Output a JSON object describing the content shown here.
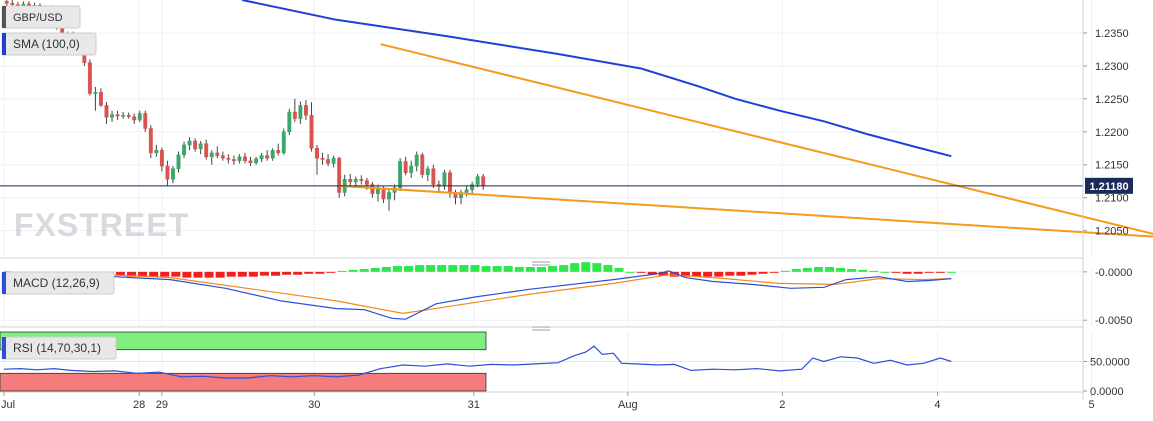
{
  "chart_data": {
    "type": "candlestick",
    "instrument": "GBP/USD",
    "watermark": "FXSTREET",
    "x_labels": [
      {
        "t": 0,
        "label": "Jul"
      },
      {
        "t": 24.4,
        "label": "28"
      },
      {
        "t": 28.5,
        "label": "29"
      },
      {
        "t": 56,
        "label": "30"
      },
      {
        "t": 84.8,
        "label": "31"
      },
      {
        "t": 112.6,
        "label": "Aug"
      },
      {
        "t": 140.5,
        "label": "2"
      },
      {
        "t": 168.5,
        "label": "4"
      },
      {
        "t": 196.3,
        "label": "5"
      }
    ],
    "price_panel": {
      "ylim": [
        1.201,
        1.24
      ],
      "ticks": [
        "1.2050",
        "1.2100",
        "1.2150",
        "1.2200",
        "1.2250",
        "1.2300",
        "1.2350"
      ],
      "current_price": "1.21180",
      "current_value": 1.2118,
      "sma_label": "SMA (100,0)",
      "sma_color": "#1f3fd6",
      "bull_color": "#3aa86a",
      "bear_color": "#d9534f",
      "trend_color": "#f59a1b",
      "candles": [
        [
          1.2398,
          1.2402,
          1.239,
          1.2395
        ],
        [
          1.2395,
          1.24,
          1.2388,
          1.2393
        ],
        [
          1.2393,
          1.2397,
          1.2386,
          1.2391
        ],
        [
          1.239,
          1.2398,
          1.2385,
          1.2394
        ],
        [
          1.2394,
          1.2398,
          1.2388,
          1.2391
        ],
        [
          1.2391,
          1.2396,
          1.2386,
          1.2392
        ],
        [
          1.2392,
          1.2395,
          1.238,
          1.2386
        ],
        [
          1.2386,
          1.2392,
          1.2382,
          1.2389
        ],
        [
          1.2389,
          1.2392,
          1.2378,
          1.238
        ],
        [
          1.238,
          1.2385,
          1.2355,
          1.236
        ],
        [
          1.236,
          1.2368,
          1.2335,
          1.234
        ],
        [
          1.234,
          1.2352,
          1.2332,
          1.2348
        ],
        [
          1.2348,
          1.2352,
          1.2328,
          1.2332
        ],
        [
          1.2332,
          1.2342,
          1.232,
          1.2338
        ],
        [
          1.2338,
          1.2342,
          1.23,
          1.2305
        ],
        [
          1.2305,
          1.231,
          1.2255,
          1.2258
        ],
        [
          1.2258,
          1.2268,
          1.2232,
          1.226
        ],
        [
          1.226,
          1.2266,
          1.2238,
          1.224
        ],
        [
          1.224,
          1.2245,
          1.2212,
          1.2222
        ],
        [
          1.2222,
          1.2232,
          1.2215,
          1.2226
        ],
        [
          1.2226,
          1.2232,
          1.2218,
          1.2224
        ],
        [
          1.2224,
          1.223,
          1.222,
          1.2225
        ],
        [
          1.2225,
          1.2229,
          1.222,
          1.2223
        ],
        [
          1.2223,
          1.2228,
          1.2212,
          1.2218
        ],
        [
          1.2218,
          1.2232,
          1.2215,
          1.2228
        ],
        [
          1.2228,
          1.2232,
          1.22,
          1.2205
        ],
        [
          1.2205,
          1.221,
          1.216,
          1.2168
        ],
        [
          1.2168,
          1.218,
          1.2162,
          1.2172
        ],
        [
          1.2172,
          1.2176,
          1.214,
          1.2148
        ],
        [
          1.2148,
          1.2156,
          1.2118,
          1.2128
        ],
        [
          1.2128,
          1.2148,
          1.2122,
          1.2144
        ],
        [
          1.2144,
          1.217,
          1.2138,
          1.2165
        ],
        [
          1.2165,
          1.2185,
          1.216,
          1.218
        ],
        [
          1.218,
          1.2192,
          1.2172,
          1.2186
        ],
        [
          1.2186,
          1.219,
          1.217,
          1.2174
        ],
        [
          1.2174,
          1.2186,
          1.2166,
          1.2182
        ],
        [
          1.2182,
          1.2188,
          1.2158,
          1.2162
        ],
        [
          1.2162,
          1.2172,
          1.215,
          1.2168
        ],
        [
          1.2168,
          1.2178,
          1.216,
          1.2164
        ],
        [
          1.2164,
          1.217,
          1.2156,
          1.216
        ],
        [
          1.216,
          1.2166,
          1.2152,
          1.2158
        ],
        [
          1.2158,
          1.2164,
          1.215,
          1.2156
        ],
        [
          1.2156,
          1.2166,
          1.2152,
          1.2162
        ],
        [
          1.2162,
          1.2168,
          1.2152,
          1.2156
        ],
        [
          1.2156,
          1.2162,
          1.2148,
          1.2153
        ],
        [
          1.2153,
          1.2162,
          1.215,
          1.2159
        ],
        [
          1.2159,
          1.2168,
          1.2154,
          1.2164
        ],
        [
          1.2164,
          1.2172,
          1.2156,
          1.216
        ],
        [
          1.216,
          1.2175,
          1.2156,
          1.2172
        ],
        [
          1.2172,
          1.2182,
          1.2164,
          1.2168
        ],
        [
          1.2168,
          1.2205,
          1.2165,
          1.22
        ],
        [
          1.22,
          1.2235,
          1.2195,
          1.223
        ],
        [
          1.223,
          1.225,
          1.2215,
          1.222
        ],
        [
          1.222,
          1.2246,
          1.2212,
          1.224
        ],
        [
          1.224,
          1.2248,
          1.2218,
          1.2225
        ],
        [
          1.2225,
          1.2245,
          1.217,
          1.2175
        ],
        [
          1.2175,
          1.218,
          1.2135,
          1.216
        ],
        [
          1.216,
          1.2168,
          1.215,
          1.2158
        ],
        [
          1.2158,
          1.2166,
          1.2148,
          1.2152
        ],
        [
          1.2152,
          1.2164,
          1.2146,
          1.216
        ],
        [
          1.216,
          1.2162,
          1.21,
          1.2108
        ],
        [
          1.2108,
          1.2135,
          1.2102,
          1.2128
        ],
        [
          1.2128,
          1.2136,
          1.2118,
          1.2124
        ],
        [
          1.2124,
          1.2132,
          1.2116,
          1.2128
        ],
        [
          1.2128,
          1.2134,
          1.212,
          1.2126
        ],
        [
          1.2126,
          1.213,
          1.2112,
          1.212
        ],
        [
          1.212,
          1.2124,
          1.21,
          1.2106
        ],
        [
          1.2106,
          1.212,
          1.2094,
          1.2114
        ],
        [
          1.2114,
          1.2118,
          1.2092,
          1.2098
        ],
        [
          1.2098,
          1.2112,
          1.208,
          1.2108
        ],
        [
          1.2108,
          1.212,
          1.2096,
          1.2115
        ],
        [
          1.2115,
          1.216,
          1.211,
          1.2155
        ],
        [
          1.2155,
          1.2162,
          1.2134,
          1.2138
        ],
        [
          1.2138,
          1.2156,
          1.213,
          1.2148
        ],
        [
          1.2148,
          1.217,
          1.214,
          1.2165
        ],
        [
          1.2165,
          1.2168,
          1.213,
          1.2135
        ],
        [
          1.2135,
          1.2148,
          1.2125,
          1.2144
        ],
        [
          1.2144,
          1.215,
          1.2115,
          1.212
        ],
        [
          1.212,
          1.2126,
          1.211,
          1.2118
        ],
        [
          1.2118,
          1.2142,
          1.2112,
          1.2138
        ],
        [
          1.2138,
          1.2142,
          1.21,
          1.2108
        ],
        [
          1.2108,
          1.2112,
          1.209,
          1.21
        ],
        [
          1.21,
          1.2112,
          1.209,
          1.2108
        ],
        [
          1.2108,
          1.2118,
          1.2102,
          1.2112
        ],
        [
          1.2112,
          1.2124,
          1.2106,
          1.212
        ],
        [
          1.212,
          1.2136,
          1.2116,
          1.2132
        ],
        [
          1.2132,
          1.2136,
          1.2112,
          1.2118
        ]
      ],
      "sma": [
        {
          "t": 43,
          "v": 1.24
        },
        {
          "t": 60,
          "v": 1.237
        },
        {
          "t": 80,
          "v": 1.2345
        },
        {
          "t": 100,
          "v": 1.2318
        },
        {
          "t": 115,
          "v": 1.2296
        },
        {
          "t": 125,
          "v": 1.227
        },
        {
          "t": 132,
          "v": 1.225
        },
        {
          "t": 140,
          "v": 1.2232
        },
        {
          "t": 148,
          "v": 1.2216
        },
        {
          "t": 156,
          "v": 1.2196
        },
        {
          "t": 165,
          "v": 1.2176
        },
        {
          "t": 171,
          "v": 1.2163
        }
      ],
      "trend_upper": [
        {
          "t": 68,
          "v": 1.2333
        },
        {
          "t": 222,
          "v": 1.2015
        }
      ],
      "trend_lower": [
        {
          "t": 60.5,
          "v": 1.2118
        },
        {
          "t": 238,
          "v": 1.2025
        }
      ]
    },
    "macd_panel": {
      "label": "MACD (12,26,9)",
      "ylim": [
        -0.0056,
        0.0005
      ],
      "ticks": [
        "-0.0000",
        "-0.0050"
      ],
      "macd_color": "#2a50d8",
      "signal_color": "#f28a1b",
      "hist_pos_color": "#2ee84a",
      "hist_neg_color": "#f21f1f",
      "macd": [
        {
          "t": 0,
          "v": -0.0
        },
        {
          "t": 10,
          "v": -0.0002
        },
        {
          "t": 20,
          "v": -0.0005
        },
        {
          "t": 30,
          "v": -0.0008
        },
        {
          "t": 40,
          "v": -0.0017
        },
        {
          "t": 50,
          "v": -0.003
        },
        {
          "t": 60,
          "v": -0.0038
        },
        {
          "t": 65,
          "v": -0.0039
        },
        {
          "t": 70,
          "v": -0.0048
        },
        {
          "t": 72.5,
          "v": -0.0049
        },
        {
          "t": 78,
          "v": -0.0033
        },
        {
          "t": 85,
          "v": -0.0026
        },
        {
          "t": 95,
          "v": -0.0018
        },
        {
          "t": 110,
          "v": -0.0008
        },
        {
          "t": 118,
          "v": -0.0002
        },
        {
          "t": 120,
          "v": 0.0001
        },
        {
          "t": 123,
          "v": -0.0006
        },
        {
          "t": 128,
          "v": -0.001
        },
        {
          "t": 135,
          "v": -0.0013
        },
        {
          "t": 142,
          "v": -0.0017
        },
        {
          "t": 148,
          "v": -0.0016
        },
        {
          "t": 152,
          "v": -0.0008
        },
        {
          "t": 158,
          "v": -0.0005
        },
        {
          "t": 163,
          "v": -0.001
        },
        {
          "t": 167,
          "v": -0.0009
        },
        {
          "t": 171,
          "v": -0.0007
        }
      ],
      "signal": [
        {
          "t": 0,
          "v": -0.0
        },
        {
          "t": 15,
          "v": -0.0002
        },
        {
          "t": 30,
          "v": -0.0006
        },
        {
          "t": 45,
          "v": -0.0018
        },
        {
          "t": 60,
          "v": -0.003
        },
        {
          "t": 72,
          "v": -0.0043
        },
        {
          "t": 80,
          "v": -0.0036
        },
        {
          "t": 95,
          "v": -0.0023
        },
        {
          "t": 110,
          "v": -0.0012
        },
        {
          "t": 120,
          "v": -0.0003
        },
        {
          "t": 128,
          "v": -0.0006
        },
        {
          "t": 140,
          "v": -0.0012
        },
        {
          "t": 150,
          "v": -0.0013
        },
        {
          "t": 158,
          "v": -0.0007
        },
        {
          "t": 166,
          "v": -0.0008
        },
        {
          "t": 171,
          "v": -0.0007
        }
      ],
      "histogram": [
        0.0,
        -0.0001,
        -0.0001,
        -0.0001,
        -0.0002,
        -0.0002,
        -0.0002,
        -0.0003,
        -0.0003,
        -0.0004,
        -0.0004,
        -0.0005,
        -0.0005,
        -0.0005,
        -0.0005,
        -0.0005,
        -0.0006,
        -0.0006,
        -0.0006,
        -0.0006,
        -0.0005,
        -0.0005,
        -0.0005,
        -0.0004,
        -0.0004,
        -0.0003,
        -0.0003,
        -0.0002,
        -0.0002,
        -0.0001,
        0.0001,
        0.0002,
        0.0003,
        0.0004,
        0.0005,
        0.0006,
        0.0006,
        0.0007,
        0.0007,
        0.0007,
        0.0007,
        0.0007,
        0.0007,
        0.0006,
        0.0006,
        0.0006,
        0.0005,
        0.0005,
        0.0005,
        0.0006,
        0.0007,
        0.0009,
        0.001,
        0.0009,
        0.0007,
        0.0004,
        0.0,
        -0.0001,
        -0.0003,
        -0.0004,
        -0.0005,
        -0.0005,
        -0.0005,
        -0.0005,
        -0.0005,
        -0.0004,
        -0.0004,
        -0.0003,
        -0.0002,
        -0.0001,
        0.0001,
        0.0003,
        0.0004,
        0.0005,
        0.0005,
        0.0004,
        0.0003,
        0.0002,
        0.0001,
        0.0,
        -0.0001,
        -0.0002,
        -0.0002,
        -0.0001,
        -0.0001,
        0.0
      ]
    },
    "rsi_panel": {
      "label": "RSI (14,70,30,1)",
      "ylim": [
        0,
        100
      ],
      "ticks": [
        {
          "v": 50,
          "label": "50.0000"
        },
        {
          "v": 0,
          "label": "0.0000"
        }
      ],
      "overbought": 70,
      "oversold": 30,
      "ob_color": "#7ff07f",
      "os_color": "#f47c7c",
      "line_color": "#2a50d8",
      "rsi": [
        {
          "t": 0,
          "v": 37
        },
        {
          "t": 3,
          "v": 38
        },
        {
          "t": 6,
          "v": 36
        },
        {
          "t": 9,
          "v": 38
        },
        {
          "t": 12,
          "v": 35
        },
        {
          "t": 16,
          "v": 33
        },
        {
          "t": 20,
          "v": 34
        },
        {
          "t": 24,
          "v": 30
        },
        {
          "t": 28,
          "v": 32
        },
        {
          "t": 32,
          "v": 24
        },
        {
          "t": 36,
          "v": 25
        },
        {
          "t": 40,
          "v": 22
        },
        {
          "t": 44,
          "v": 22
        },
        {
          "t": 48,
          "v": 26
        },
        {
          "t": 52,
          "v": 24
        },
        {
          "t": 56,
          "v": 26
        },
        {
          "t": 60,
          "v": 24
        },
        {
          "t": 64,
          "v": 27
        },
        {
          "t": 68,
          "v": 38
        },
        {
          "t": 72,
          "v": 44
        },
        {
          "t": 76,
          "v": 42
        },
        {
          "t": 80,
          "v": 46
        },
        {
          "t": 84,
          "v": 42
        },
        {
          "t": 88,
          "v": 45
        },
        {
          "t": 92,
          "v": 44
        },
        {
          "t": 96,
          "v": 46
        },
        {
          "t": 100,
          "v": 48
        },
        {
          "t": 103,
          "v": 60
        },
        {
          "t": 105,
          "v": 66
        },
        {
          "t": 106.5,
          "v": 76
        },
        {
          "t": 108,
          "v": 62
        },
        {
          "t": 110,
          "v": 64
        },
        {
          "t": 111.5,
          "v": 47
        },
        {
          "t": 114,
          "v": 46
        },
        {
          "t": 118,
          "v": 44
        },
        {
          "t": 121,
          "v": 45
        },
        {
          "t": 124,
          "v": 35
        },
        {
          "t": 128,
          "v": 37
        },
        {
          "t": 132,
          "v": 36
        },
        {
          "t": 136,
          "v": 38
        },
        {
          "t": 140,
          "v": 34
        },
        {
          "t": 144,
          "v": 37
        },
        {
          "t": 146,
          "v": 56
        },
        {
          "t": 148,
          "v": 50
        },
        {
          "t": 151,
          "v": 58
        },
        {
          "t": 154,
          "v": 56
        },
        {
          "t": 157,
          "v": 47
        },
        {
          "t": 160,
          "v": 52
        },
        {
          "t": 163,
          "v": 44
        },
        {
          "t": 166,
          "v": 47
        },
        {
          "t": 169,
          "v": 56
        },
        {
          "t": 171,
          "v": 50
        }
      ]
    }
  }
}
